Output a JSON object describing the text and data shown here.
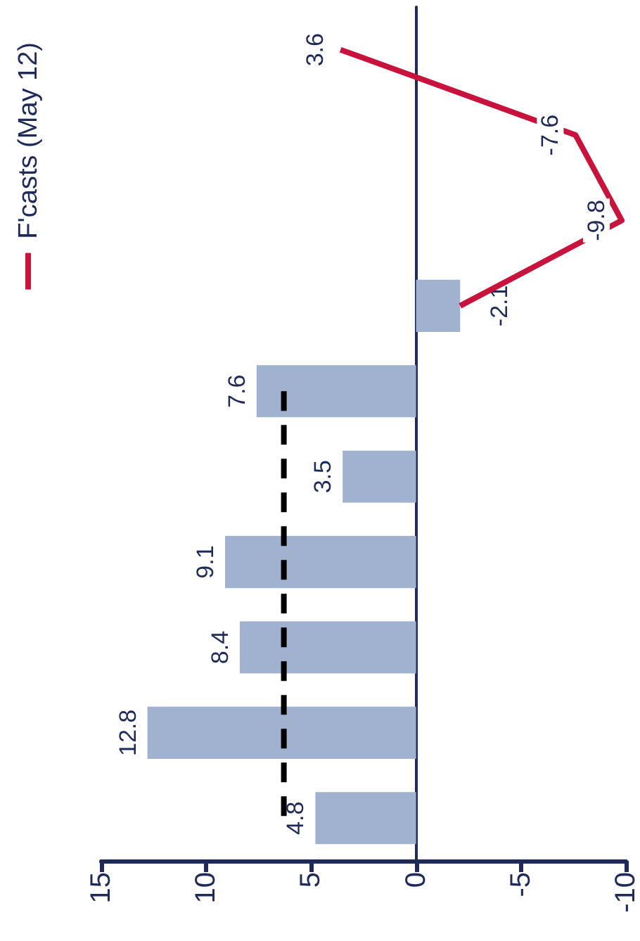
{
  "chart_data": {
    "type": "bar",
    "orientation": "horizontal",
    "categories": [
      null,
      null,
      null,
      null,
      null,
      null,
      null,
      null,
      null,
      null
    ],
    "series": [
      {
        "color": "#a0b2cf",
        "values": [
          null,
          null,
          null,
          -2.1,
          7.6,
          3.5,
          9.1,
          8.4,
          12.8,
          4.8
        ],
        "value_labels": [
          null,
          null,
          null,
          "-2.1",
          "7.6",
          "3.5",
          "9.1",
          "8.4",
          "12.8",
          "4.8"
        ]
      },
      {
        "type": "line",
        "line_style": "dashed",
        "color": "#000000",
        "values": [
          null,
          null,
          null,
          null,
          6.3,
          6.3,
          6.3,
          6.3,
          6.3,
          6.3
        ]
      },
      {
        "type": "line",
        "name": "F'casts (May 12)",
        "color": "#c8143c",
        "values": [
          3.6,
          -7.6,
          -9.8,
          -2.1,
          null,
          null,
          null,
          null,
          null,
          null
        ],
        "value_labels": [
          "3.6",
          "-7.6",
          "-9.8",
          null,
          null,
          null,
          null,
          null,
          null,
          null
        ]
      }
    ],
    "xlim": [
      15,
      -10
    ],
    "xticks": [
      15,
      10,
      5,
      0,
      -5,
      -10
    ],
    "grid": false,
    "legend": "top left",
    "marker": "none"
  }
}
